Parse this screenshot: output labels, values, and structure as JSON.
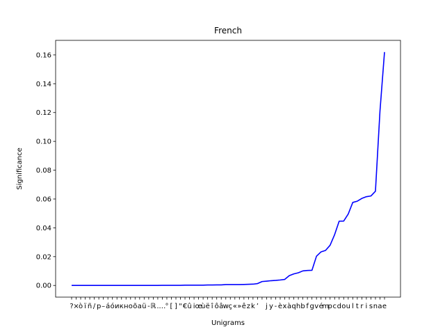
{
  "chart_data": {
    "type": "line",
    "title": "French",
    "xlabel": "Unigrams",
    "ylabel": "Significance",
    "ylim": [
      -0.0081,
      0.1701
    ],
    "yticks": [
      0.0,
      0.02,
      0.04,
      0.06,
      0.08,
      0.1,
      0.12,
      0.14,
      0.16
    ],
    "ytick_labels": [
      "0.00",
      "0.02",
      "0.04",
      "0.06",
      "0.08",
      "0.10",
      "0.12",
      "0.14",
      "0.16"
    ],
    "grid": false,
    "line_color": "#0000ff",
    "categories": [
      "?",
      "×",
      "ò",
      "ï",
      "ñ",
      "/",
      "p",
      "–",
      "á",
      "ó",
      "и",
      "к",
      "н",
      "о",
      "õ",
      "a",
      "ü",
      "-",
      "ℝ",
      ".",
      "…",
      "°",
      "[",
      "]",
      "\"",
      "€",
      "û",
      "i",
      "œ",
      "ù",
      "ë",
      "î",
      "ô",
      "â",
      "w",
      "ç",
      "«",
      "»",
      "ê",
      "z",
      "k",
      "’",
      " ",
      "j",
      "y",
      "-",
      "è",
      "x",
      "à",
      "q",
      "h",
      "b",
      "f",
      "g",
      "v",
      "é",
      "m",
      "p",
      "c",
      "d",
      "o",
      "u",
      "l",
      "t",
      "r",
      "i",
      "s",
      "n",
      "a",
      "e"
    ],
    "values": [
      0.0,
      0.0,
      0.0,
      0.0,
      0.0,
      0.0,
      0.0,
      0.0,
      0.0,
      0.0,
      0.0,
      0.0,
      0.0,
      0.0,
      0.0,
      0.0,
      0.0,
      0.0,
      0.0,
      0.0,
      0.0001,
      0.0001,
      0.0001,
      0.0001,
      0.0001,
      0.0002,
      0.0002,
      0.0002,
      0.0002,
      0.0002,
      0.0003,
      0.0003,
      0.0004,
      0.0004,
      0.0006,
      0.0006,
      0.0006,
      0.0006,
      0.0007,
      0.0008,
      0.0009,
      0.0013,
      0.0027,
      0.003,
      0.0033,
      0.0035,
      0.0038,
      0.0042,
      0.0068,
      0.008,
      0.0088,
      0.0101,
      0.0104,
      0.0105,
      0.0203,
      0.0233,
      0.0243,
      0.0279,
      0.0353,
      0.0446,
      0.0447,
      0.0496,
      0.0576,
      0.0585,
      0.0604,
      0.0616,
      0.0621,
      0.0654,
      0.121,
      0.162
    ]
  }
}
